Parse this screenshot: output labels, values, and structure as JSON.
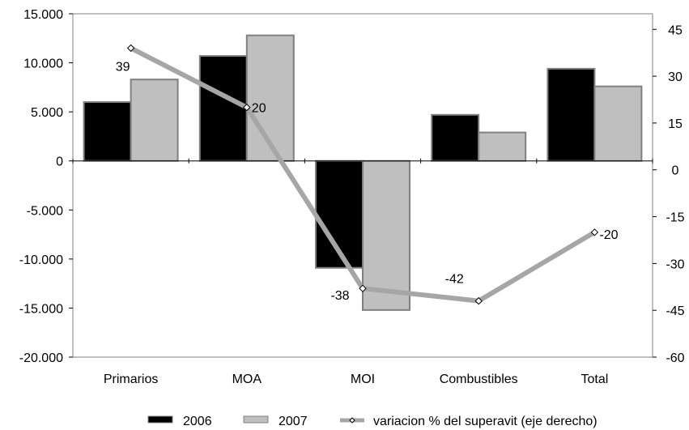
{
  "chart_data": {
    "type": "bar",
    "categories": [
      "Primarios",
      "MOA",
      "MOI",
      "Combustibles",
      "Total"
    ],
    "series": [
      {
        "name": "2006",
        "kind": "bar",
        "axis": "left",
        "color": "#000000",
        "values": [
          6000,
          10700,
          -10900,
          4700,
          9400
        ]
      },
      {
        "name": "2007",
        "kind": "bar",
        "axis": "left",
        "color": "#bfbfbf",
        "values": [
          8300,
          12800,
          -15200,
          2900,
          7600
        ]
      },
      {
        "name": "variacion % del superavit (eje derecho)",
        "kind": "line",
        "axis": "right",
        "color": "#a6a6a6",
        "values": [
          39,
          20,
          -38,
          -42,
          -20
        ],
        "labels": [
          "39",
          "20",
          "-38",
          "-42",
          "-20"
        ]
      }
    ],
    "left_axis": {
      "min": -20000,
      "max": 15000,
      "step": 5000,
      "tick_labels": [
        "15.000",
        "10.000",
        "5.000",
        "0",
        "-5.000",
        "-10.000",
        "-15.000",
        "-20.000"
      ]
    },
    "right_axis": {
      "min": -60,
      "max": 50,
      "tick_values": [
        45,
        30,
        15,
        0,
        -15,
        -30,
        -45,
        -60
      ],
      "tick_labels": [
        "45",
        "30",
        "15",
        "0",
        "-15",
        "-30",
        "-45",
        "-60"
      ]
    },
    "legend": {
      "position": "bottom"
    },
    "grid": false
  }
}
